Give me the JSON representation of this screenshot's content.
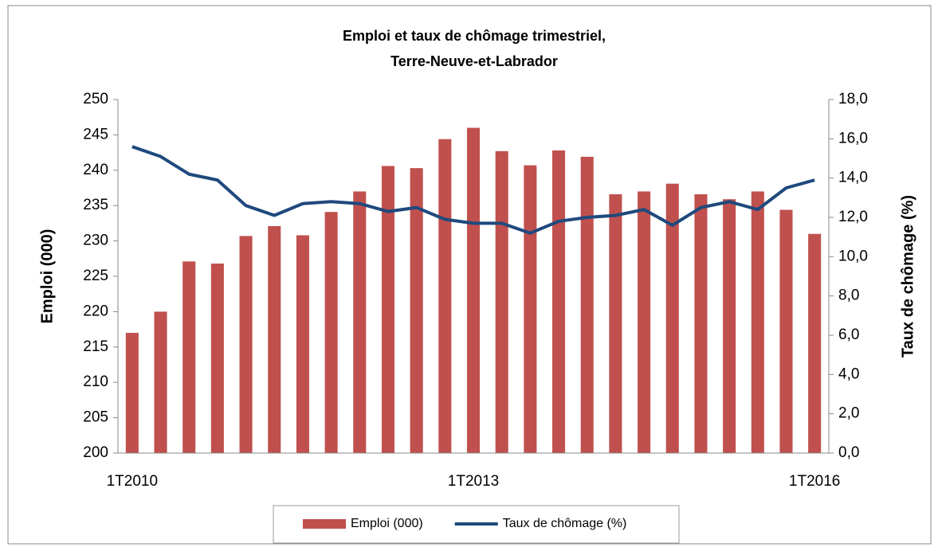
{
  "chart_data": {
    "type": "bar-line",
    "title": [
      "Emploi et taux de chômage trimestriel,",
      "Terre-Neuve-et-Labrador"
    ],
    "ylabel": "Emploi (000)",
    "y2label": "Taux de chômage (%)",
    "categories": [
      "1T2010",
      null,
      null,
      null,
      null,
      null,
      null,
      null,
      null,
      null,
      null,
      null,
      "1T2013",
      null,
      null,
      null,
      null,
      null,
      null,
      null,
      null,
      null,
      null,
      null,
      "1T2016"
    ],
    "series": [
      {
        "name": "Emploi (000)",
        "type": "bar",
        "color": "#c0504d",
        "values": [
          217.0,
          220.0,
          227.1,
          226.8,
          230.7,
          232.1,
          230.8,
          234.1,
          237.0,
          240.6,
          240.3,
          244.4,
          246.0,
          242.7,
          240.7,
          242.8,
          241.9,
          236.6,
          237.0,
          238.1,
          236.6,
          235.9,
          237.0,
          234.4,
          231.0
        ]
      },
      {
        "name": "Taux de chômage (%)",
        "type": "line",
        "axis": "y2",
        "color": "#1f497d",
        "values": [
          15.6,
          15.1,
          14.2,
          13.9,
          12.6,
          12.1,
          12.7,
          12.8,
          12.7,
          12.3,
          12.5,
          11.9,
          11.7,
          11.7,
          11.2,
          11.8,
          12.0,
          12.1,
          12.4,
          11.6,
          12.5,
          12.8,
          12.4,
          13.5,
          13.9
        ]
      }
    ],
    "ylim": [
      200,
      250
    ],
    "yticks": [
      200,
      205,
      210,
      215,
      220,
      225,
      230,
      235,
      240,
      245,
      250
    ],
    "y2lim": [
      0,
      18
    ],
    "y2ticks": [
      {
        "value": 0,
        "label": "0,0"
      },
      {
        "value": 2,
        "label": "2,0"
      },
      {
        "value": 4,
        "label": "4,0"
      },
      {
        "value": 6,
        "label": "6,0"
      },
      {
        "value": 8,
        "label": "8,0"
      },
      {
        "value": 10,
        "label": "10,0"
      },
      {
        "value": 12,
        "label": "12,0"
      },
      {
        "value": 14,
        "label": "14,0"
      },
      {
        "value": 16,
        "label": "16,0"
      },
      {
        "value": 18,
        "label": "18,0"
      }
    ],
    "legend": "bottom",
    "grid": false
  }
}
